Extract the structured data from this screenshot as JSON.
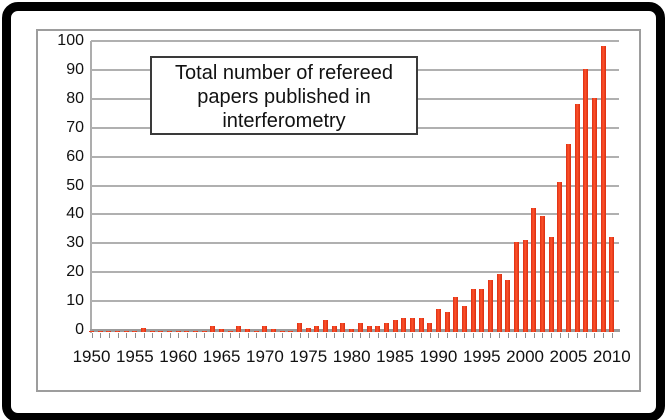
{
  "title_lines": [
    "Total number of refereed",
    "papers published in",
    "interferometry"
  ],
  "chart_data": {
    "type": "bar",
    "title": "Total number of refereed papers published in interferometry",
    "xlabel": "",
    "ylabel": "",
    "x": [
      1950,
      1951,
      1952,
      1953,
      1954,
      1955,
      1956,
      1957,
      1958,
      1959,
      1960,
      1961,
      1962,
      1963,
      1964,
      1965,
      1966,
      1967,
      1968,
      1969,
      1970,
      1971,
      1972,
      1973,
      1974,
      1975,
      1976,
      1977,
      1978,
      1979,
      1980,
      1981,
      1982,
      1983,
      1984,
      1985,
      1986,
      1987,
      1988,
      1989,
      1990,
      1991,
      1992,
      1993,
      1994,
      1995,
      1996,
      1997,
      1998,
      1999,
      2000,
      2001,
      2002,
      2003,
      2004,
      2005,
      2006,
      2007,
      2008,
      2009,
      2010
    ],
    "values": [
      0.5,
      0.5,
      0.5,
      0.5,
      0.5,
      0.5,
      1.5,
      0.5,
      0.5,
      0.5,
      0.5,
      0.5,
      0.5,
      0.5,
      2,
      1,
      0.5,
      2,
      1,
      0.5,
      2,
      1,
      0.5,
      0.5,
      3,
      1.5,
      2,
      4,
      2,
      3,
      1,
      3,
      2,
      2,
      3,
      4,
      5,
      5,
      5,
      3,
      8,
      7,
      12,
      9,
      15,
      15,
      18,
      20,
      18,
      31,
      32,
      43,
      40,
      33,
      52,
      65,
      79,
      91,
      81,
      99,
      33
    ],
    "y_ticks": [
      0,
      10,
      20,
      30,
      40,
      50,
      60,
      70,
      80,
      90,
      100
    ],
    "y_tick_labels": [
      "0",
      "10",
      "20",
      "30",
      "40",
      "50",
      "60",
      "70",
      "80",
      "90",
      "100"
    ],
    "x_tick_labels": [
      "1950",
      "1955",
      "1960",
      "1965",
      "1970",
      "1975",
      "1980",
      "1985",
      "1990",
      "1995",
      "2000",
      "2005",
      "2010"
    ],
    "ylim": [
      0,
      100
    ],
    "grid": true,
    "legend": false,
    "bar_color": "#ea3418",
    "gridline_color": "#b0b0b0"
  }
}
